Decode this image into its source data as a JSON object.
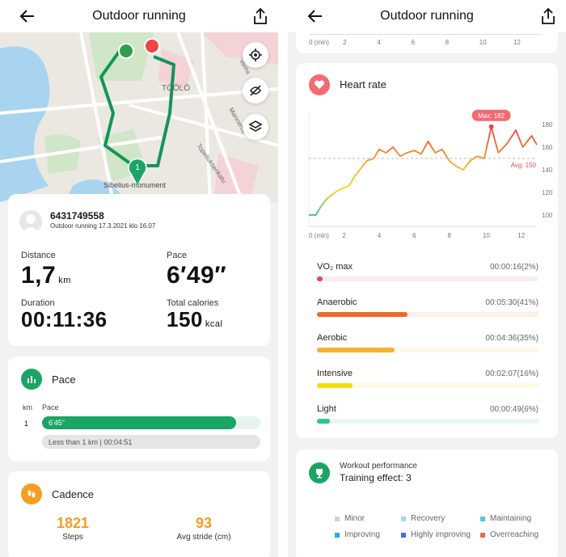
{
  "left": {
    "title": "Outdoor running",
    "map": {
      "labels": [
        "TÖÖLÖ",
        "Sibelius-monument",
        "Mannerhe",
        "Topeliuksenkatu",
        "Vanha"
      ],
      "lap_marker": "1"
    },
    "profile": {
      "name": "6431749558",
      "subtitle": "Outdoor running 17.3.2021 klo 16.07"
    },
    "stats": {
      "distance_label": "Distance",
      "distance_value": "1,7",
      "distance_unit": "km",
      "pace_label": "Pace",
      "pace_value": "6′49″",
      "duration_label": "Duration",
      "duration_value": "00:11:36",
      "calories_label": "Total calories",
      "calories_value": "150",
      "calories_unit": "kcal"
    },
    "pace_section": {
      "title": "Pace",
      "col_km": "km",
      "col_pace": "Pace",
      "row_km": "1",
      "row_pace": "6'45\"",
      "row_fill": 0.89,
      "summary": "Less than 1 km | 00:04:51"
    },
    "cadence": {
      "title": "Cadence",
      "steps_value": "1821",
      "steps_label": "Steps",
      "stride_value": "93",
      "stride_label": "Avg stride (cm)"
    }
  },
  "right": {
    "title": "Outdoor running",
    "top_axis": [
      "0 (min)",
      "2",
      "4",
      "6",
      "8",
      "10",
      "12"
    ],
    "heart_rate": {
      "title": "Heart rate",
      "max_label": "Max: 182",
      "avg_label": "Avg: 150"
    },
    "zones": [
      {
        "name": "VO₂ max",
        "time": "00:00:16(2%)",
        "pct": 0.02,
        "color": "#e8474f",
        "track": "#fdecee"
      },
      {
        "name": "Anaerobic",
        "time": "00:05:30(41%)",
        "pct": 0.41,
        "color": "#ee6a2b",
        "track": "#fdeee6"
      },
      {
        "name": "Aerobic",
        "time": "00:04:36(35%)",
        "pct": 0.35,
        "color": "#f4b22e",
        "track": "#fef6e6"
      },
      {
        "name": "Intensive",
        "time": "00:02:07(16%)",
        "pct": 0.16,
        "color": "#f5d90f",
        "track": "#fdf9e3"
      },
      {
        "name": "Light",
        "time": "00:00:49(6%)",
        "pct": 0.06,
        "color": "#2cc98a",
        "track": "#e6f8f0"
      }
    ],
    "workout": {
      "title": "Workout performance",
      "subtitle": "Training effect: 3",
      "legend": [
        {
          "label": "Minor",
          "color": "#d3d3d3"
        },
        {
          "label": "Recovery",
          "color": "#a8d6f2"
        },
        {
          "label": "Maintaining",
          "color": "#55c2e8"
        },
        {
          "label": "Improving",
          "color": "#2ea3e6"
        },
        {
          "label": "Highly improving",
          "color": "#3d6ee0"
        },
        {
          "label": "Overreaching",
          "color": "#f0674e"
        }
      ]
    }
  },
  "colors": {
    "accent_green": "#1aa564",
    "route_green": "#13955a",
    "start_marker": "#2f9e4b",
    "end_marker": "#ee4444",
    "cadence_orange": "#f59e21",
    "heart_red": "#f06b72"
  },
  "chart_data": {
    "type": "line",
    "title": "Heart rate",
    "xlabel": "",
    "ylabel": "",
    "x_ticks": [
      "0 (min)",
      "2",
      "4",
      "6",
      "8",
      "10",
      "12"
    ],
    "y_ticks": [
      100,
      120,
      140,
      160,
      180
    ],
    "xlim": [
      0,
      13
    ],
    "ylim": [
      90,
      190
    ],
    "avg": 150,
    "max": 182,
    "x": [
      0,
      0.4,
      0.7,
      1.0,
      1.3,
      1.7,
      2.0,
      2.3,
      2.6,
      3.0,
      3.3,
      3.7,
      4.0,
      4.4,
      4.8,
      5.2,
      5.6,
      6.0,
      6.4,
      6.8,
      7.2,
      7.6,
      8.0,
      8.4,
      8.8,
      9.2,
      9.6,
      10.0,
      10.4,
      10.8,
      11.3,
      11.8,
      12.2,
      12.7,
      13.0
    ],
    "y": [
      100,
      100,
      108,
      114,
      118,
      122,
      124,
      126,
      134,
      142,
      148,
      150,
      158,
      155,
      160,
      152,
      155,
      157,
      154,
      165,
      155,
      158,
      148,
      143,
      140,
      148,
      152,
      150,
      178,
      155,
      163,
      175,
      160,
      170,
      162
    ]
  }
}
